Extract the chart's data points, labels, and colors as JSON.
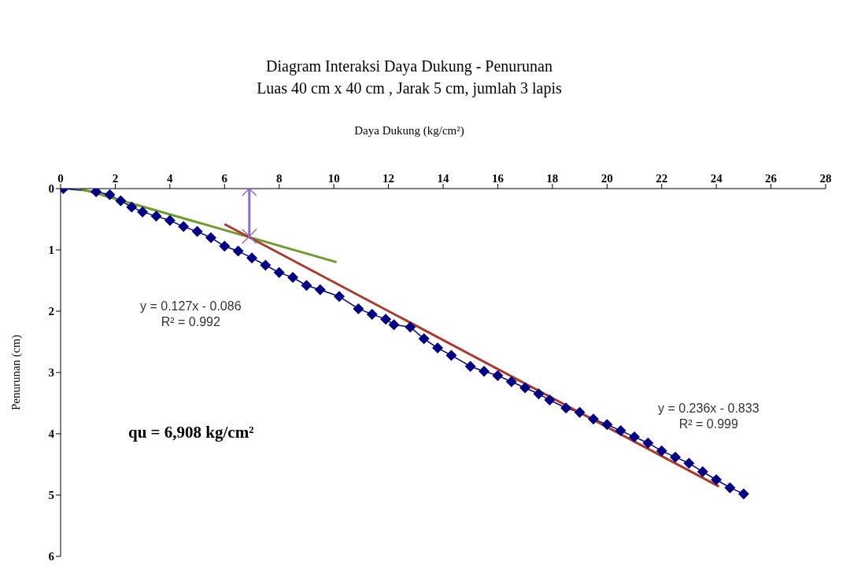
{
  "chart_data": {
    "type": "line",
    "title": "Diagram Interaksi Daya Dukung - Penurunan",
    "subtitle": "Luas 40 cm x 40 cm , Jarak 5 cm, jumlah 3 lapis",
    "xlabel": "Daya Dukung (kg/cm²)",
    "ylabel": "Penurunan (cm)",
    "xlim": [
      0,
      28
    ],
    "xticks": [
      0,
      2,
      4,
      6,
      8,
      10,
      12,
      14,
      16,
      18,
      20,
      22,
      24,
      26,
      28
    ],
    "ylim": [
      6,
      0
    ],
    "yticks": [
      0,
      1,
      2,
      3,
      4,
      5,
      6
    ],
    "grid": false,
    "legend": false,
    "series": [
      {
        "marker": "diamond",
        "color": "#000080",
        "x": [
          0.1,
          1.3,
          1.8,
          2.2,
          2.6,
          3.0,
          3.5,
          4.0,
          4.5,
          5.0,
          5.5,
          6.0,
          6.5,
          7.0,
          7.5,
          8.0,
          8.5,
          9.0,
          9.5,
          10.2,
          10.9,
          11.4,
          11.9,
          12.2,
          12.8,
          13.3,
          13.8,
          14.3,
          15.0,
          15.5,
          16.0,
          16.5,
          17.0,
          17.5,
          17.9,
          18.5,
          19.0,
          19.5,
          20.0,
          20.5,
          21.0,
          21.5,
          22.0,
          22.5,
          23.0,
          23.5,
          24.0,
          24.5,
          25.0
        ],
        "values": [
          0,
          0.05,
          0.1,
          0.2,
          0.3,
          0.38,
          0.45,
          0.52,
          0.62,
          0.7,
          0.8,
          0.94,
          1.02,
          1.13,
          1.25,
          1.37,
          1.45,
          1.58,
          1.65,
          1.76,
          1.96,
          2.05,
          2.13,
          2.22,
          2.26,
          2.45,
          2.6,
          2.72,
          2.9,
          2.98,
          3.05,
          3.15,
          3.25,
          3.35,
          3.45,
          3.58,
          3.65,
          3.76,
          3.85,
          3.95,
          4.05,
          4.15,
          4.28,
          4.38,
          4.48,
          4.62,
          4.75,
          4.88,
          4.98
        ]
      },
      {
        "marker": "none",
        "color": "#6f9a30",
        "x": [
          0.7,
          10.1
        ],
        "values": [
          0.0,
          1.2
        ]
      },
      {
        "marker": "none",
        "color": "#a83a30",
        "x": [
          6.0,
          24.1
        ],
        "values": [
          0.58,
          4.86
        ]
      },
      {
        "marker": "cross",
        "color": "#8e6bbf",
        "x": [
          6.908,
          6.908
        ],
        "values": [
          0,
          0.78
        ]
      }
    ],
    "annotations": [
      "y = 0.127x - 0.086\nR² = 0.992",
      "y = 0.236x - 0.833\nR² = 0.999",
      "qu = 6,908 kg/cm²"
    ]
  }
}
